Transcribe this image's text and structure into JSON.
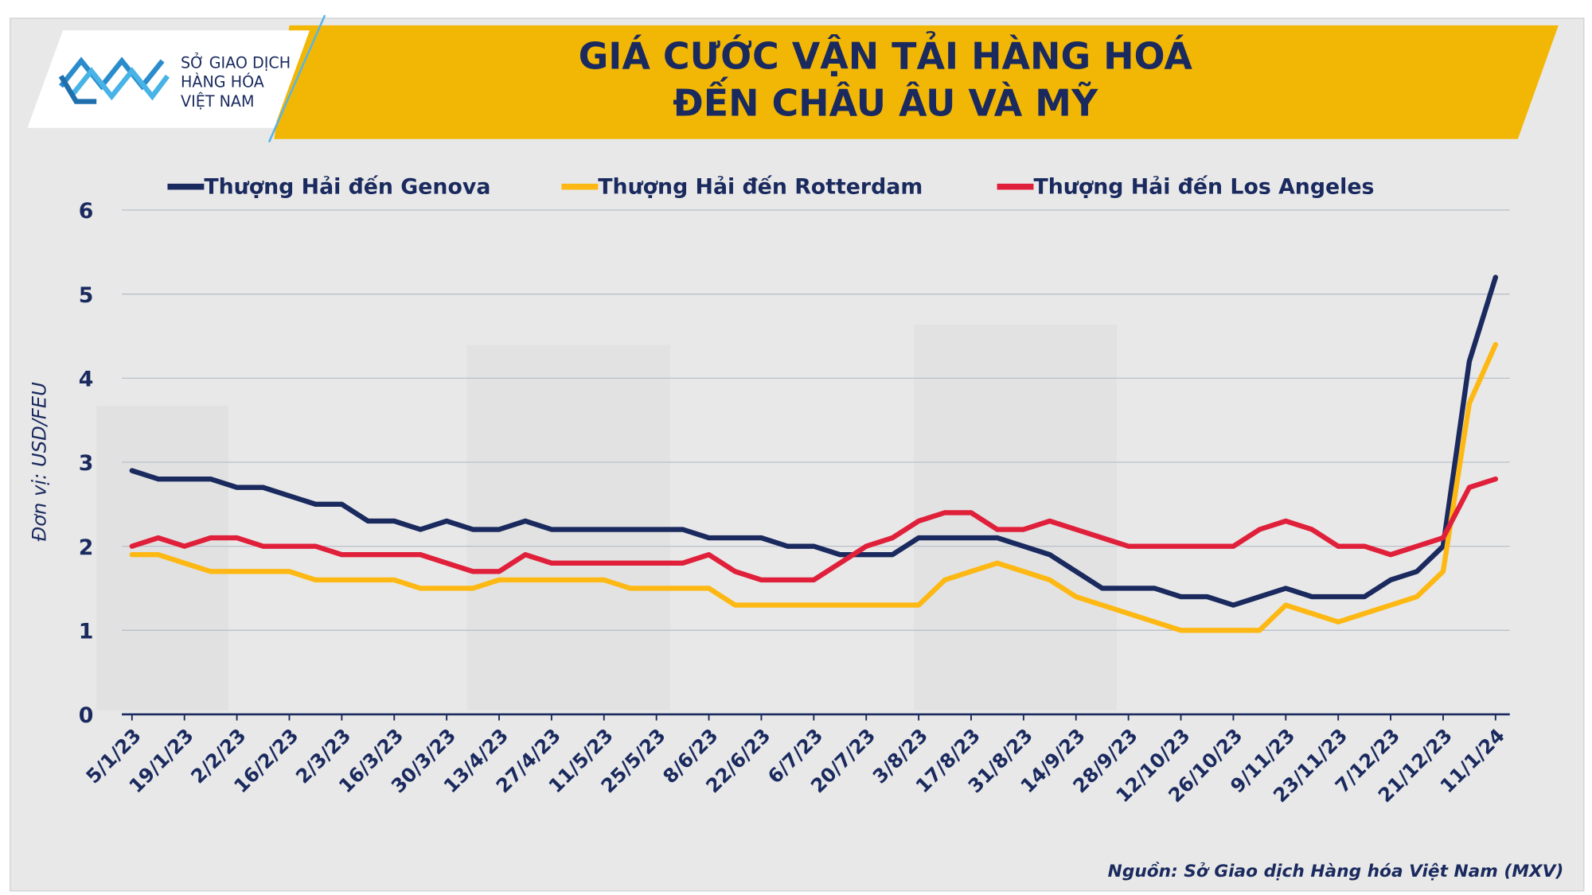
{
  "logo": {
    "lines": [
      "SỞ GIAO DỊCH",
      "HÀNG HÓA",
      "VIỆT NAM"
    ]
  },
  "chart_data": {
    "type": "line",
    "title": [
      "GIÁ CƯỚC VẬN TẢI HÀNG HOÁ",
      "ĐẾN CHÂU ÂU VÀ MỸ"
    ],
    "y_label": "Đơn vị: USD/FEU",
    "categories": [
      "5/1/23",
      null,
      "19/1/23",
      null,
      "2/2/23",
      null,
      "16/2/23",
      null,
      "2/3/23",
      null,
      "16/3/23",
      null,
      "30/3/23",
      null,
      "13/4/23",
      null,
      "27/4/23",
      null,
      "11/5/23",
      null,
      "25/5/23",
      null,
      "8/6/23",
      null,
      "22/6/23",
      null,
      "6/7/23",
      null,
      "20/7/23",
      null,
      "3/8/23",
      null,
      "17/8/23",
      null,
      "31/8/23",
      null,
      "14/9/23",
      null,
      "28/9/23",
      null,
      "12/10/23",
      null,
      "26/10/23",
      null,
      "9/11/23",
      null,
      "23/11/23",
      null,
      "7/12/23",
      null,
      "21/12/23",
      null,
      "11/1/24"
    ],
    "series": [
      {
        "name": "Thượng Hải đến Genova",
        "color": "#1a2a5e",
        "values": [
          2.9,
          2.8,
          2.8,
          2.8,
          2.7,
          2.7,
          2.6,
          2.5,
          2.5,
          2.3,
          2.3,
          2.2,
          2.3,
          2.2,
          2.2,
          2.3,
          2.2,
          2.2,
          2.2,
          2.2,
          2.2,
          2.2,
          2.1,
          2.1,
          2.1,
          2.0,
          2.0,
          1.9,
          1.9,
          1.9,
          2.1,
          2.1,
          2.1,
          2.1,
          2.0,
          1.9,
          1.7,
          1.5,
          1.5,
          1.5,
          1.4,
          1.4,
          1.3,
          1.4,
          1.5,
          1.4,
          1.4,
          1.4,
          1.6,
          1.7,
          2.0,
          4.2,
          5.2
        ]
      },
      {
        "name": "Thượng Hải đến Rotterdam",
        "color": "#fdb813",
        "values": [
          1.9,
          1.9,
          1.8,
          1.7,
          1.7,
          1.7,
          1.7,
          1.6,
          1.6,
          1.6,
          1.6,
          1.5,
          1.5,
          1.5,
          1.6,
          1.6,
          1.6,
          1.6,
          1.6,
          1.5,
          1.5,
          1.5,
          1.5,
          1.3,
          1.3,
          1.3,
          1.3,
          1.3,
          1.3,
          1.3,
          1.3,
          1.6,
          1.7,
          1.8,
          1.7,
          1.6,
          1.4,
          1.3,
          1.2,
          1.1,
          1.0,
          1.0,
          1.0,
          1.0,
          1.3,
          1.2,
          1.1,
          1.2,
          1.3,
          1.4,
          1.7,
          3.7,
          4.4
        ]
      },
      {
        "name": "Thượng Hải đến Los Angeles",
        "color": "#e0203a",
        "values": [
          2.0,
          2.1,
          2.0,
          2.1,
          2.1,
          2.0,
          2.0,
          2.0,
          1.9,
          1.9,
          1.9,
          1.9,
          1.8,
          1.7,
          1.7,
          1.9,
          1.8,
          1.8,
          1.8,
          1.8,
          1.8,
          1.8,
          1.9,
          1.7,
          1.6,
          1.6,
          1.6,
          1.8,
          2.0,
          2.1,
          2.3,
          2.4,
          2.4,
          2.2,
          2.2,
          2.3,
          2.2,
          2.1,
          2.0,
          2.0,
          2.0,
          2.0,
          2.0,
          2.2,
          2.3,
          2.2,
          2.0,
          2.0,
          1.9,
          2.0,
          2.1,
          2.7,
          2.8
        ]
      }
    ],
    "ylim": [
      0,
      6
    ],
    "yticks": [
      0,
      1,
      2,
      3,
      4,
      5,
      6
    ],
    "grid": true,
    "source": "Nguồn: Sở Giao dịch Hàng hóa Việt Nam (MXV)"
  }
}
